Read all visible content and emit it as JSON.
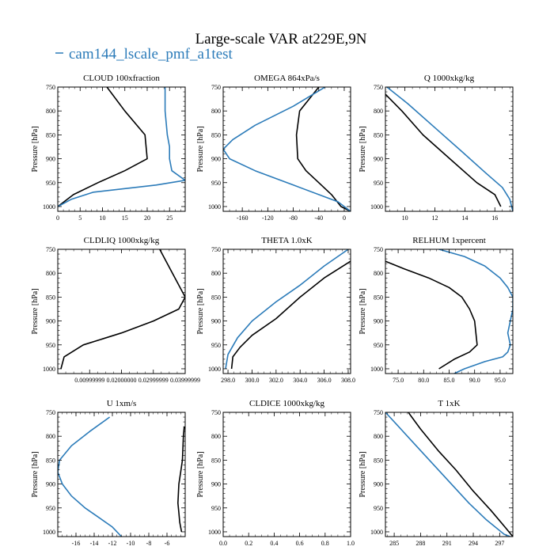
{
  "title": "Large-scale VAR at229E,9N",
  "legend": {
    "label": "cam144_lscale_pmf_a1test",
    "color": "#2b7bb9"
  },
  "colors": {
    "black": "#000000",
    "blue": "#2b7bb9"
  },
  "chart_data": [
    {
      "type": "line",
      "title": "CLOUD  100xfraction",
      "ylabel": "Pressure [hPa]",
      "xlim": [
        0,
        28.5
      ],
      "ylim": [
        750,
        1010
      ],
      "y_inverted": true,
      "xticks": [
        0,
        5,
        10,
        15,
        20,
        25
      ],
      "xtick_labels": [
        "0",
        "5",
        "10",
        "15",
        "20",
        "25"
      ],
      "yticks": [
        750,
        800,
        850,
        900,
        950,
        1000
      ],
      "ytick_labels": [
        "750",
        "800",
        "850",
        "900",
        "950",
        "1000"
      ],
      "series": [
        {
          "color": "#000000",
          "x": [
            11,
            15,
            19.5,
            20,
            15,
            9,
            3.5,
            0
          ],
          "y": [
            750,
            800,
            850,
            900,
            925,
            950,
            975,
            1000
          ]
        },
        {
          "color": "#2b7bb9",
          "x": [
            24,
            24,
            24.5,
            25,
            25,
            25.5,
            28.5,
            22,
            8,
            3,
            0
          ],
          "y": [
            750,
            800,
            850,
            875,
            900,
            925,
            945,
            955,
            970,
            985,
            1000
          ]
        }
      ]
    },
    {
      "type": "line",
      "title": "OMEGA  864xPa/s",
      "ylabel": "Pressure [hPa]",
      "xlim": [
        -190,
        10
      ],
      "ylim": [
        750,
        1010
      ],
      "y_inverted": true,
      "xticks": [
        -160,
        -120,
        -80,
        -40,
        0
      ],
      "xtick_labels": [
        "-160",
        "-120",
        "-80",
        "-40",
        "0"
      ],
      "yticks": [
        750,
        800,
        850,
        900,
        950,
        1000
      ],
      "ytick_labels": [
        "750",
        "800",
        "850",
        "900",
        "950",
        "1000"
      ],
      "series": [
        {
          "color": "#000000",
          "x": [
            -40,
            -55,
            -70,
            -75,
            -73,
            -60,
            -40,
            -20,
            -5,
            10
          ],
          "y": [
            750,
            775,
            800,
            850,
            900,
            925,
            950,
            975,
            1000,
            1010
          ]
        },
        {
          "color": "#2b7bb9",
          "x": [
            -30,
            -80,
            -140,
            -175,
            -190,
            -180,
            -140,
            -80,
            -10,
            10
          ],
          "y": [
            750,
            790,
            830,
            860,
            880,
            900,
            925,
            955,
            990,
            1010
          ]
        }
      ]
    },
    {
      "type": "line",
      "title": "Q  1000xkg/kg",
      "ylabel": "Pressure [hPa]",
      "xlim": [
        8.7,
        17.2
      ],
      "ylim": [
        750,
        1010
      ],
      "y_inverted": true,
      "xticks": [
        10,
        12,
        14,
        16
      ],
      "xtick_labels": [
        "10",
        "12",
        "14",
        "16"
      ],
      "yticks": [
        750,
        800,
        850,
        900,
        950,
        1000
      ],
      "ytick_labels": [
        "750",
        "800",
        "850",
        "900",
        "950",
        "1000"
      ],
      "series": [
        {
          "color": "#000000",
          "x": [
            8.7,
            9.8,
            11.2,
            13.0,
            14.8,
            16.0,
            16.4
          ],
          "y": [
            765,
            800,
            850,
            900,
            950,
            975,
            1000
          ]
        },
        {
          "color": "#2b7bb9",
          "x": [
            8.8,
            10.2,
            12.0,
            13.8,
            15.4,
            16.5,
            17.0,
            17.2
          ],
          "y": [
            750,
            785,
            835,
            885,
            930,
            960,
            985,
            1010
          ]
        }
      ]
    },
    {
      "type": "line",
      "title": "CLDLIQ  1000xkg/kg",
      "ylabel": "Pressure [hPa]",
      "xlim": [
        0,
        0.04
      ],
      "ylim": [
        750,
        1010
      ],
      "y_inverted": true,
      "xticks": [
        0.00999999,
        0.02,
        0.02999999,
        0.03999999
      ],
      "xtick_labels": [
        "0.00999999",
        "0.02000000",
        "0.02999999",
        "0.03999999"
      ],
      "yticks": [
        750,
        800,
        850,
        900,
        950,
        1000
      ],
      "ytick_labels": [
        "750",
        "800",
        "850",
        "900",
        "950",
        "1000"
      ],
      "series": [
        {
          "color": "#000000",
          "x": [
            0.032,
            0.036,
            0.04,
            0.038,
            0.03,
            0.02,
            0.008,
            0.002,
            0.001
          ],
          "y": [
            750,
            800,
            850,
            875,
            900,
            925,
            950,
            975,
            1000
          ]
        }
      ]
    },
    {
      "type": "line",
      "title": "THETA  1.0xK",
      "ylabel": "Pressure [hPa]",
      "xlim": [
        297.6,
        308.2
      ],
      "ylim": [
        750,
        1010
      ],
      "y_inverted": true,
      "xticks": [
        298.0,
        300.0,
        302.0,
        304.0,
        306.0,
        308.0
      ],
      "xtick_labels": [
        "298.0",
        "300.0",
        "302.0",
        "304.0",
        "306.0",
        "308.0"
      ],
      "yticks": [
        750,
        800,
        850,
        900,
        950,
        1000
      ],
      "ytick_labels": [
        "750",
        "800",
        "850",
        "900",
        "950",
        "1000"
      ],
      "series": [
        {
          "color": "#000000",
          "x": [
            308.2,
            306.0,
            304.0,
            302.0,
            300.0,
            299.0,
            298.4,
            298.3
          ],
          "y": [
            775,
            810,
            850,
            895,
            930,
            955,
            975,
            1000
          ]
        },
        {
          "color": "#2b7bb9",
          "x": [
            308.0,
            306.0,
            304.0,
            302.0,
            300.0,
            298.8,
            298.0,
            297.8
          ],
          "y": [
            750,
            785,
            825,
            860,
            900,
            935,
            970,
            1000
          ]
        }
      ]
    },
    {
      "type": "line",
      "title": "RELHUM  1xpercent",
      "ylabel": "Pressure [hPa]",
      "xlim": [
        72.5,
        97.5
      ],
      "ylim": [
        750,
        1010
      ],
      "y_inverted": true,
      "xticks": [
        75.0,
        80.0,
        85.0,
        90.0,
        95.0
      ],
      "xtick_labels": [
        "75.0",
        "80.0",
        "85.0",
        "90.0",
        "95.0"
      ],
      "yticks": [
        750,
        800,
        850,
        900,
        950,
        1000
      ],
      "ytick_labels": [
        "750",
        "800",
        "850",
        "900",
        "950",
        "1000"
      ],
      "series": [
        {
          "color": "#000000",
          "x": [
            72.5,
            76,
            81,
            85,
            87.5,
            89,
            90,
            90.5,
            89,
            86,
            83
          ],
          "y": [
            775,
            790,
            810,
            830,
            850,
            875,
            900,
            950,
            965,
            980,
            1000
          ]
        },
        {
          "color": "#2b7bb9",
          "x": [
            83,
            88,
            92,
            95,
            96.5,
            97.5,
            97.5,
            97,
            96.5,
            97,
            96.5,
            95.5,
            92,
            88,
            86
          ],
          "y": [
            750,
            765,
            785,
            810,
            830,
            850,
            875,
            900,
            925,
            950,
            965,
            975,
            985,
            1000,
            1010
          ]
        }
      ]
    },
    {
      "type": "line",
      "title": "U  1xm/s",
      "ylabel": "Pressure [hPa]",
      "xlim": [
        -18,
        -4
      ],
      "ylim": [
        750,
        1010
      ],
      "y_inverted": true,
      "xticks": [
        -16,
        -14,
        -12,
        -10,
        -8,
        -6
      ],
      "xtick_labels": [
        "-16",
        "-14",
        "-12",
        "-10",
        "-8",
        "-6"
      ],
      "yticks": [
        750,
        800,
        850,
        900,
        950,
        1000
      ],
      "ytick_labels": [
        "750",
        "800",
        "850",
        "900",
        "950",
        "1000"
      ],
      "series": [
        {
          "color": "#000000",
          "x": [
            -4.1,
            -4.2,
            -4.3,
            -4.5,
            -4.7,
            -4.8,
            -4.7,
            -4.6,
            -4.4
          ],
          "y": [
            780,
            800,
            850,
            875,
            900,
            940,
            960,
            980,
            1000
          ]
        },
        {
          "color": "#2b7bb9",
          "x": [
            -12.3,
            -14.5,
            -16.5,
            -17.8,
            -18,
            -17.5,
            -16.5,
            -15,
            -13.5,
            -12,
            -11
          ],
          "y": [
            760,
            790,
            820,
            850,
            875,
            900,
            925,
            950,
            970,
            990,
            1010
          ]
        }
      ]
    },
    {
      "type": "line",
      "title": "CLDICE  1000xkg/kg",
      "ylabel": "Pressure [hPa]",
      "xlim": [
        0,
        1
      ],
      "ylim": [
        750,
        1010
      ],
      "y_inverted": true,
      "xticks": [
        0.0,
        0.2,
        0.4,
        0.6,
        0.8,
        1.0
      ],
      "xtick_labels": [
        "0.0",
        "0.2",
        "0.4",
        "0.6",
        "0.8",
        "1.0"
      ],
      "yticks": [
        750,
        800,
        850,
        900,
        950,
        1000
      ],
      "ytick_labels": [
        "750",
        "800",
        "850",
        "900",
        "950",
        "1000"
      ],
      "series": []
    },
    {
      "type": "line",
      "title": "T  1xK",
      "ylabel": "Pressure [hPa]",
      "xlim": [
        284,
        298.5
      ],
      "ylim": [
        750,
        1010
      ],
      "y_inverted": true,
      "xticks": [
        285,
        288,
        291,
        294,
        297
      ],
      "xtick_labels": [
        "285",
        "288",
        "291",
        "294",
        "297"
      ],
      "yticks": [
        750,
        800,
        850,
        900,
        950,
        1000
      ],
      "ytick_labels": [
        "750",
        "800",
        "850",
        "900",
        "950",
        "1000"
      ],
      "series": [
        {
          "color": "#000000",
          "x": [
            286.6,
            288.0,
            290.0,
            292.0,
            294.0,
            296.0,
            297.6,
            298.5
          ],
          "y": [
            750,
            785,
            830,
            870,
            915,
            955,
            990,
            1010
          ]
        },
        {
          "color": "#2b7bb9",
          "x": [
            284.0,
            285.5,
            287.5,
            289.5,
            291.5,
            293.5,
            295.5,
            297.5,
            298.2
          ],
          "y": [
            750,
            780,
            820,
            860,
            900,
            940,
            975,
            1005,
            1010
          ]
        }
      ]
    }
  ]
}
